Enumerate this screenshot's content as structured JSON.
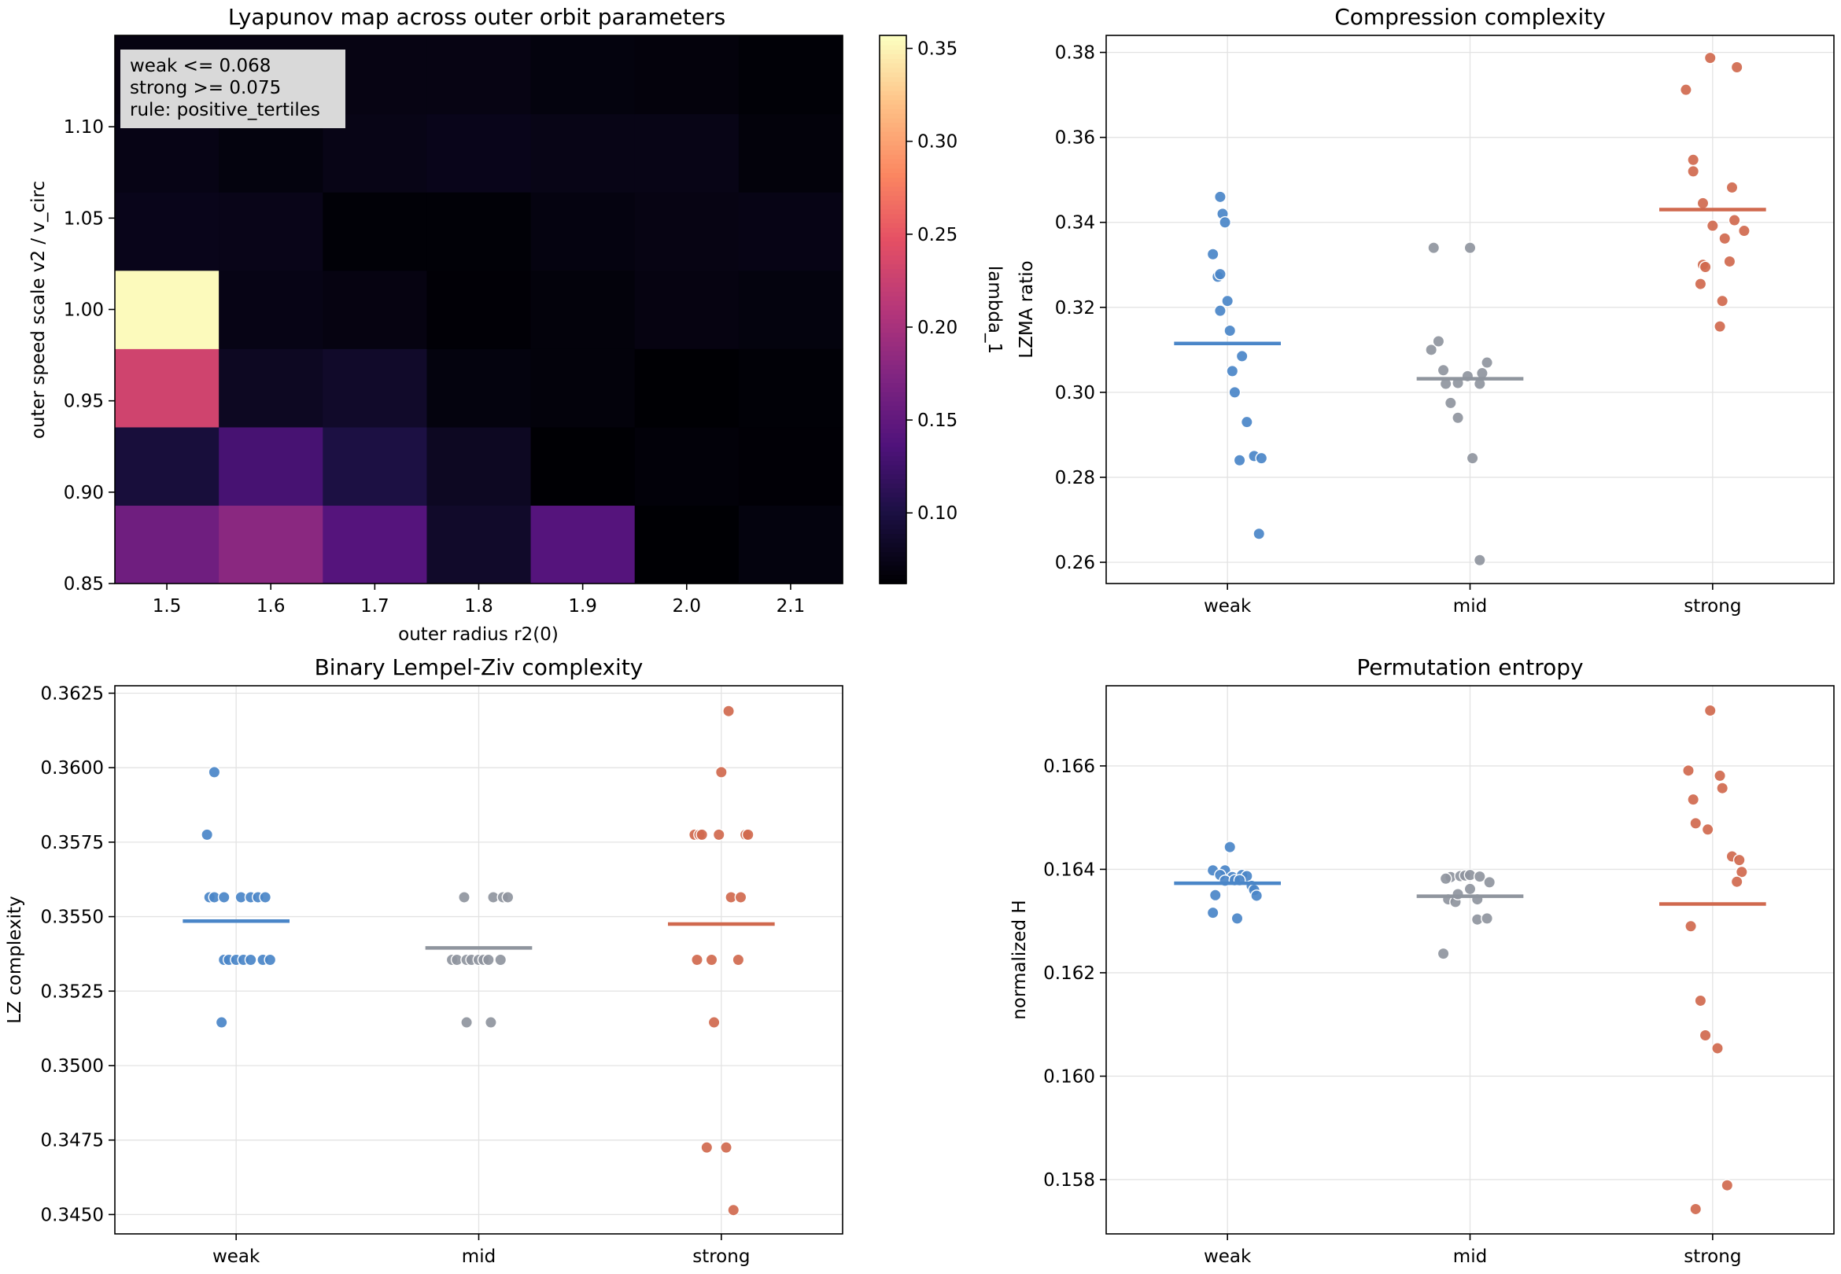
{
  "chart_data": [
    {
      "type": "heatmap",
      "title": "Lyapunov map across outer orbit parameters",
      "xlabel": "outer radius r2(0)",
      "ylabel": "outer speed scale v2 / v_circ",
      "x": [
        "1.5",
        "1.6",
        "1.7",
        "1.8",
        "1.9",
        "2.0",
        "2.1"
      ],
      "y": [
        "0.85",
        "0.90",
        "0.95",
        "1.00",
        "1.05",
        "1.10"
      ],
      "y_cells": [
        0.85,
        0.9,
        0.95,
        1.0,
        1.05,
        1.1,
        1.15
      ],
      "values": [
        [
          0.16,
          0.18,
          0.14,
          0.085,
          0.14,
          0.062,
          0.068
        ],
        [
          0.095,
          0.13,
          0.1,
          0.08,
          0.062,
          0.065,
          0.063
        ],
        [
          0.23,
          0.08,
          0.085,
          0.068,
          0.066,
          0.062,
          0.064
        ],
        [
          0.355,
          0.072,
          0.07,
          0.063,
          0.066,
          0.07,
          0.068
        ],
        [
          0.075,
          0.074,
          0.064,
          0.064,
          0.069,
          0.071,
          0.072
        ],
        [
          0.072,
          0.068,
          0.073,
          0.075,
          0.073,
          0.073,
          0.066
        ],
        [
          0.07,
          0.071,
          0.071,
          0.071,
          0.068,
          0.067,
          0.064
        ]
      ],
      "vmin": 0.062,
      "vmax": 0.357,
      "colormap": "magma",
      "colorbar": {
        "label": "lambda_1",
        "ticks": [
          0.1,
          0.15,
          0.2,
          0.25,
          0.3,
          0.35
        ],
        "tick_labels": [
          "0.10",
          "0.15",
          "0.20",
          "0.25",
          "0.30",
          "0.35"
        ]
      },
      "xticks": [
        "1.5",
        "1.6",
        "1.7",
        "1.8",
        "1.9",
        "2.0",
        "2.1"
      ],
      "yticks": [
        "0.85",
        "0.90",
        "0.95",
        "1.00",
        "1.05",
        "1.10"
      ],
      "annotation": [
        "weak <= 0.068",
        "strong >= 0.075",
        "rule: positive_tertiles"
      ]
    },
    {
      "type": "scatter",
      "title": "Compression complexity",
      "xlabel": "",
      "ylabel": "LZMA ratio",
      "categories": [
        "weak",
        "mid",
        "strong"
      ],
      "ylim": [
        0.255,
        0.384
      ],
      "yticks": [
        0.26,
        0.28,
        0.3,
        0.32,
        0.34,
        0.36,
        0.38
      ],
      "ytick_labels": [
        "0.26",
        "0.28",
        "0.30",
        "0.32",
        "0.34",
        "0.36",
        "0.38"
      ],
      "grid": true,
      "series": [
        {
          "category": "weak",
          "color": "#4a86c8",
          "mean": 0.3115,
          "points": [
            [
              -0.03,
              0.346
            ],
            [
              -0.02,
              0.342
            ],
            [
              -0.01,
              0.34
            ],
            [
              -0.06,
              0.3325
            ],
            [
              -0.04,
              0.3272
            ],
            [
              -0.03,
              0.3278
            ],
            [
              0.0,
              0.3215
            ],
            [
              -0.03,
              0.3192
            ],
            [
              0.01,
              0.3145
            ],
            [
              0.06,
              0.3085
            ],
            [
              0.02,
              0.305
            ],
            [
              0.03,
              0.3
            ],
            [
              0.08,
              0.293
            ],
            [
              0.11,
              0.285
            ],
            [
              0.14,
              0.2845
            ],
            [
              0.05,
              0.284
            ],
            [
              0.13,
              0.2667
            ]
          ]
        },
        {
          "category": "mid",
          "color": "#8f959e",
          "mean": 0.3032,
          "points": [
            [
              -0.15,
              0.334
            ],
            [
              0.0,
              0.334
            ],
            [
              -0.16,
              0.31
            ],
            [
              -0.13,
              0.312
            ],
            [
              -0.11,
              0.3052
            ],
            [
              -0.1,
              0.302
            ],
            [
              -0.05,
              0.3022
            ],
            [
              -0.08,
              0.2975
            ],
            [
              -0.05,
              0.294
            ],
            [
              -0.01,
              0.3038
            ],
            [
              0.05,
              0.3045
            ],
            [
              0.04,
              0.302
            ],
            [
              0.07,
              0.307
            ],
            [
              0.01,
              0.2845
            ],
            [
              0.04,
              0.2605
            ]
          ]
        },
        {
          "category": "strong",
          "color": "#d0694e",
          "mean": 0.343,
          "points": [
            [
              -0.11,
              0.3712
            ],
            [
              -0.01,
              0.3787
            ],
            [
              0.1,
              0.3765
            ],
            [
              -0.08,
              0.3547
            ],
            [
              -0.08,
              0.352
            ],
            [
              -0.04,
              0.3445
            ],
            [
              0.08,
              0.3482
            ],
            [
              0.09,
              0.3405
            ],
            [
              0.0,
              0.3392
            ],
            [
              0.05,
              0.3362
            ],
            [
              0.13,
              0.338
            ],
            [
              -0.04,
              0.33
            ],
            [
              -0.03,
              0.3295
            ],
            [
              0.07,
              0.3308
            ],
            [
              -0.05,
              0.3255
            ],
            [
              0.04,
              0.3215
            ],
            [
              0.03,
              0.3155
            ]
          ]
        }
      ]
    },
    {
      "type": "scatter",
      "title": "Binary Lempel-Ziv complexity",
      "xlabel": "",
      "ylabel": "LZ complexity",
      "categories": [
        "weak",
        "mid",
        "strong"
      ],
      "ylim": [
        0.34435,
        0.36275
      ],
      "yticks": [
        0.345,
        0.3475,
        0.35,
        0.3525,
        0.355,
        0.3575,
        0.36,
        0.3625
      ],
      "ytick_labels": [
        "0.3450",
        "0.3475",
        "0.3500",
        "0.3525",
        "0.3550",
        "0.3575",
        "0.3600",
        "0.3625"
      ],
      "grid": true,
      "series": [
        {
          "category": "weak",
          "color": "#4a86c8",
          "mean": 0.35485,
          "points": [
            [
              -0.12,
              0.35775
            ],
            [
              -0.09,
              0.35985
            ],
            [
              -0.11,
              0.35565
            ],
            [
              -0.09,
              0.35565
            ],
            [
              -0.05,
              0.35565
            ],
            [
              0.02,
              0.35565
            ],
            [
              0.06,
              0.35565
            ],
            [
              0.09,
              0.35565
            ],
            [
              0.12,
              0.35565
            ],
            [
              -0.05,
              0.35355
            ],
            [
              -0.03,
              0.35355
            ],
            [
              0.0,
              0.35355
            ],
            [
              0.03,
              0.35355
            ],
            [
              0.06,
              0.35355
            ],
            [
              0.11,
              0.35355
            ],
            [
              0.14,
              0.35355
            ],
            [
              -0.06,
              0.35145
            ]
          ]
        },
        {
          "category": "mid",
          "color": "#8f959e",
          "mean": 0.35395,
          "points": [
            [
              -0.06,
              0.35565
            ],
            [
              0.06,
              0.35565
            ],
            [
              0.1,
              0.35565
            ],
            [
              0.12,
              0.35565
            ],
            [
              -0.11,
              0.35355
            ],
            [
              -0.09,
              0.35355
            ],
            [
              -0.05,
              0.35355
            ],
            [
              -0.03,
              0.35355
            ],
            [
              0.0,
              0.35355
            ],
            [
              0.02,
              0.35355
            ],
            [
              0.04,
              0.35355
            ],
            [
              0.09,
              0.35355
            ],
            [
              -0.05,
              0.35145
            ],
            [
              0.05,
              0.35145
            ]
          ]
        },
        {
          "category": "strong",
          "color": "#d0694e",
          "mean": 0.35475,
          "points": [
            [
              0.03,
              0.3619
            ],
            [
              0.0,
              0.35985
            ],
            [
              -0.11,
              0.35775
            ],
            [
              -0.09,
              0.35775
            ],
            [
              -0.08,
              0.35775
            ],
            [
              -0.01,
              0.35775
            ],
            [
              0.1,
              0.35775
            ],
            [
              0.11,
              0.35775
            ],
            [
              0.04,
              0.35565
            ],
            [
              0.08,
              0.35565
            ],
            [
              -0.1,
              0.35355
            ],
            [
              -0.04,
              0.35355
            ],
            [
              0.07,
              0.35355
            ],
            [
              -0.03,
              0.35145
            ],
            [
              -0.06,
              0.34725
            ],
            [
              0.02,
              0.34725
            ],
            [
              0.05,
              0.34515
            ]
          ]
        }
      ]
    },
    {
      "type": "scatter",
      "title": "Permutation entropy",
      "xlabel": "",
      "ylabel": "normalized H",
      "categories": [
        "weak",
        "mid",
        "strong"
      ],
      "ylim": [
        0.15695,
        0.16755
      ],
      "yticks": [
        0.158,
        0.16,
        0.162,
        0.164,
        0.166
      ],
      "ytick_labels": [
        "0.158",
        "0.160",
        "0.162",
        "0.164",
        "0.166"
      ],
      "grid": true,
      "series": [
        {
          "category": "weak",
          "color": "#4a86c8",
          "mean": 0.16373,
          "points": [
            [
              0.01,
              0.16443
            ],
            [
              -0.06,
              0.16398
            ],
            [
              -0.01,
              0.16398
            ],
            [
              -0.03,
              0.16389
            ],
            [
              0.02,
              0.16385
            ],
            [
              0.06,
              0.16389
            ],
            [
              0.08,
              0.16387
            ],
            [
              -0.01,
              0.16378
            ],
            [
              0.03,
              0.16379
            ],
            [
              0.05,
              0.16379
            ],
            [
              0.1,
              0.16368
            ],
            [
              0.11,
              0.1636
            ],
            [
              -0.05,
              0.1635
            ],
            [
              0.12,
              0.16349
            ],
            [
              -0.06,
              0.16316
            ],
            [
              0.04,
              0.16305
            ]
          ]
        },
        {
          "category": "mid",
          "color": "#8f959e",
          "mean": 0.16348,
          "points": [
            [
              -0.08,
              0.16385
            ],
            [
              -0.04,
              0.16387
            ],
            [
              -0.02,
              0.16388
            ],
            [
              0.0,
              0.16389
            ],
            [
              0.04,
              0.16386
            ],
            [
              -0.1,
              0.16382
            ],
            [
              0.08,
              0.16375
            ],
            [
              0.0,
              0.16362
            ],
            [
              -0.09,
              0.16342
            ],
            [
              -0.06,
              0.16337
            ],
            [
              0.03,
              0.16342
            ],
            [
              -0.05,
              0.16352
            ],
            [
              0.03,
              0.16303
            ],
            [
              0.07,
              0.16305
            ],
            [
              -0.11,
              0.16237
            ]
          ]
        },
        {
          "category": "strong",
          "color": "#d0694e",
          "mean": 0.16333,
          "points": [
            [
              -0.01,
              0.16707
            ],
            [
              -0.1,
              0.16591
            ],
            [
              0.03,
              0.16581
            ],
            [
              -0.08,
              0.16535
            ],
            [
              0.04,
              0.16557
            ],
            [
              -0.07,
              0.16489
            ],
            [
              -0.02,
              0.16477
            ],
            [
              0.08,
              0.16425
            ],
            [
              0.11,
              0.16418
            ],
            [
              0.12,
              0.16395
            ],
            [
              0.1,
              0.16376
            ],
            [
              -0.09,
              0.1629
            ],
            [
              -0.05,
              0.16146
            ],
            [
              -0.03,
              0.16079
            ],
            [
              0.02,
              0.16054
            ],
            [
              0.06,
              0.15789
            ],
            [
              -0.07,
              0.15743
            ]
          ]
        }
      ]
    }
  ]
}
